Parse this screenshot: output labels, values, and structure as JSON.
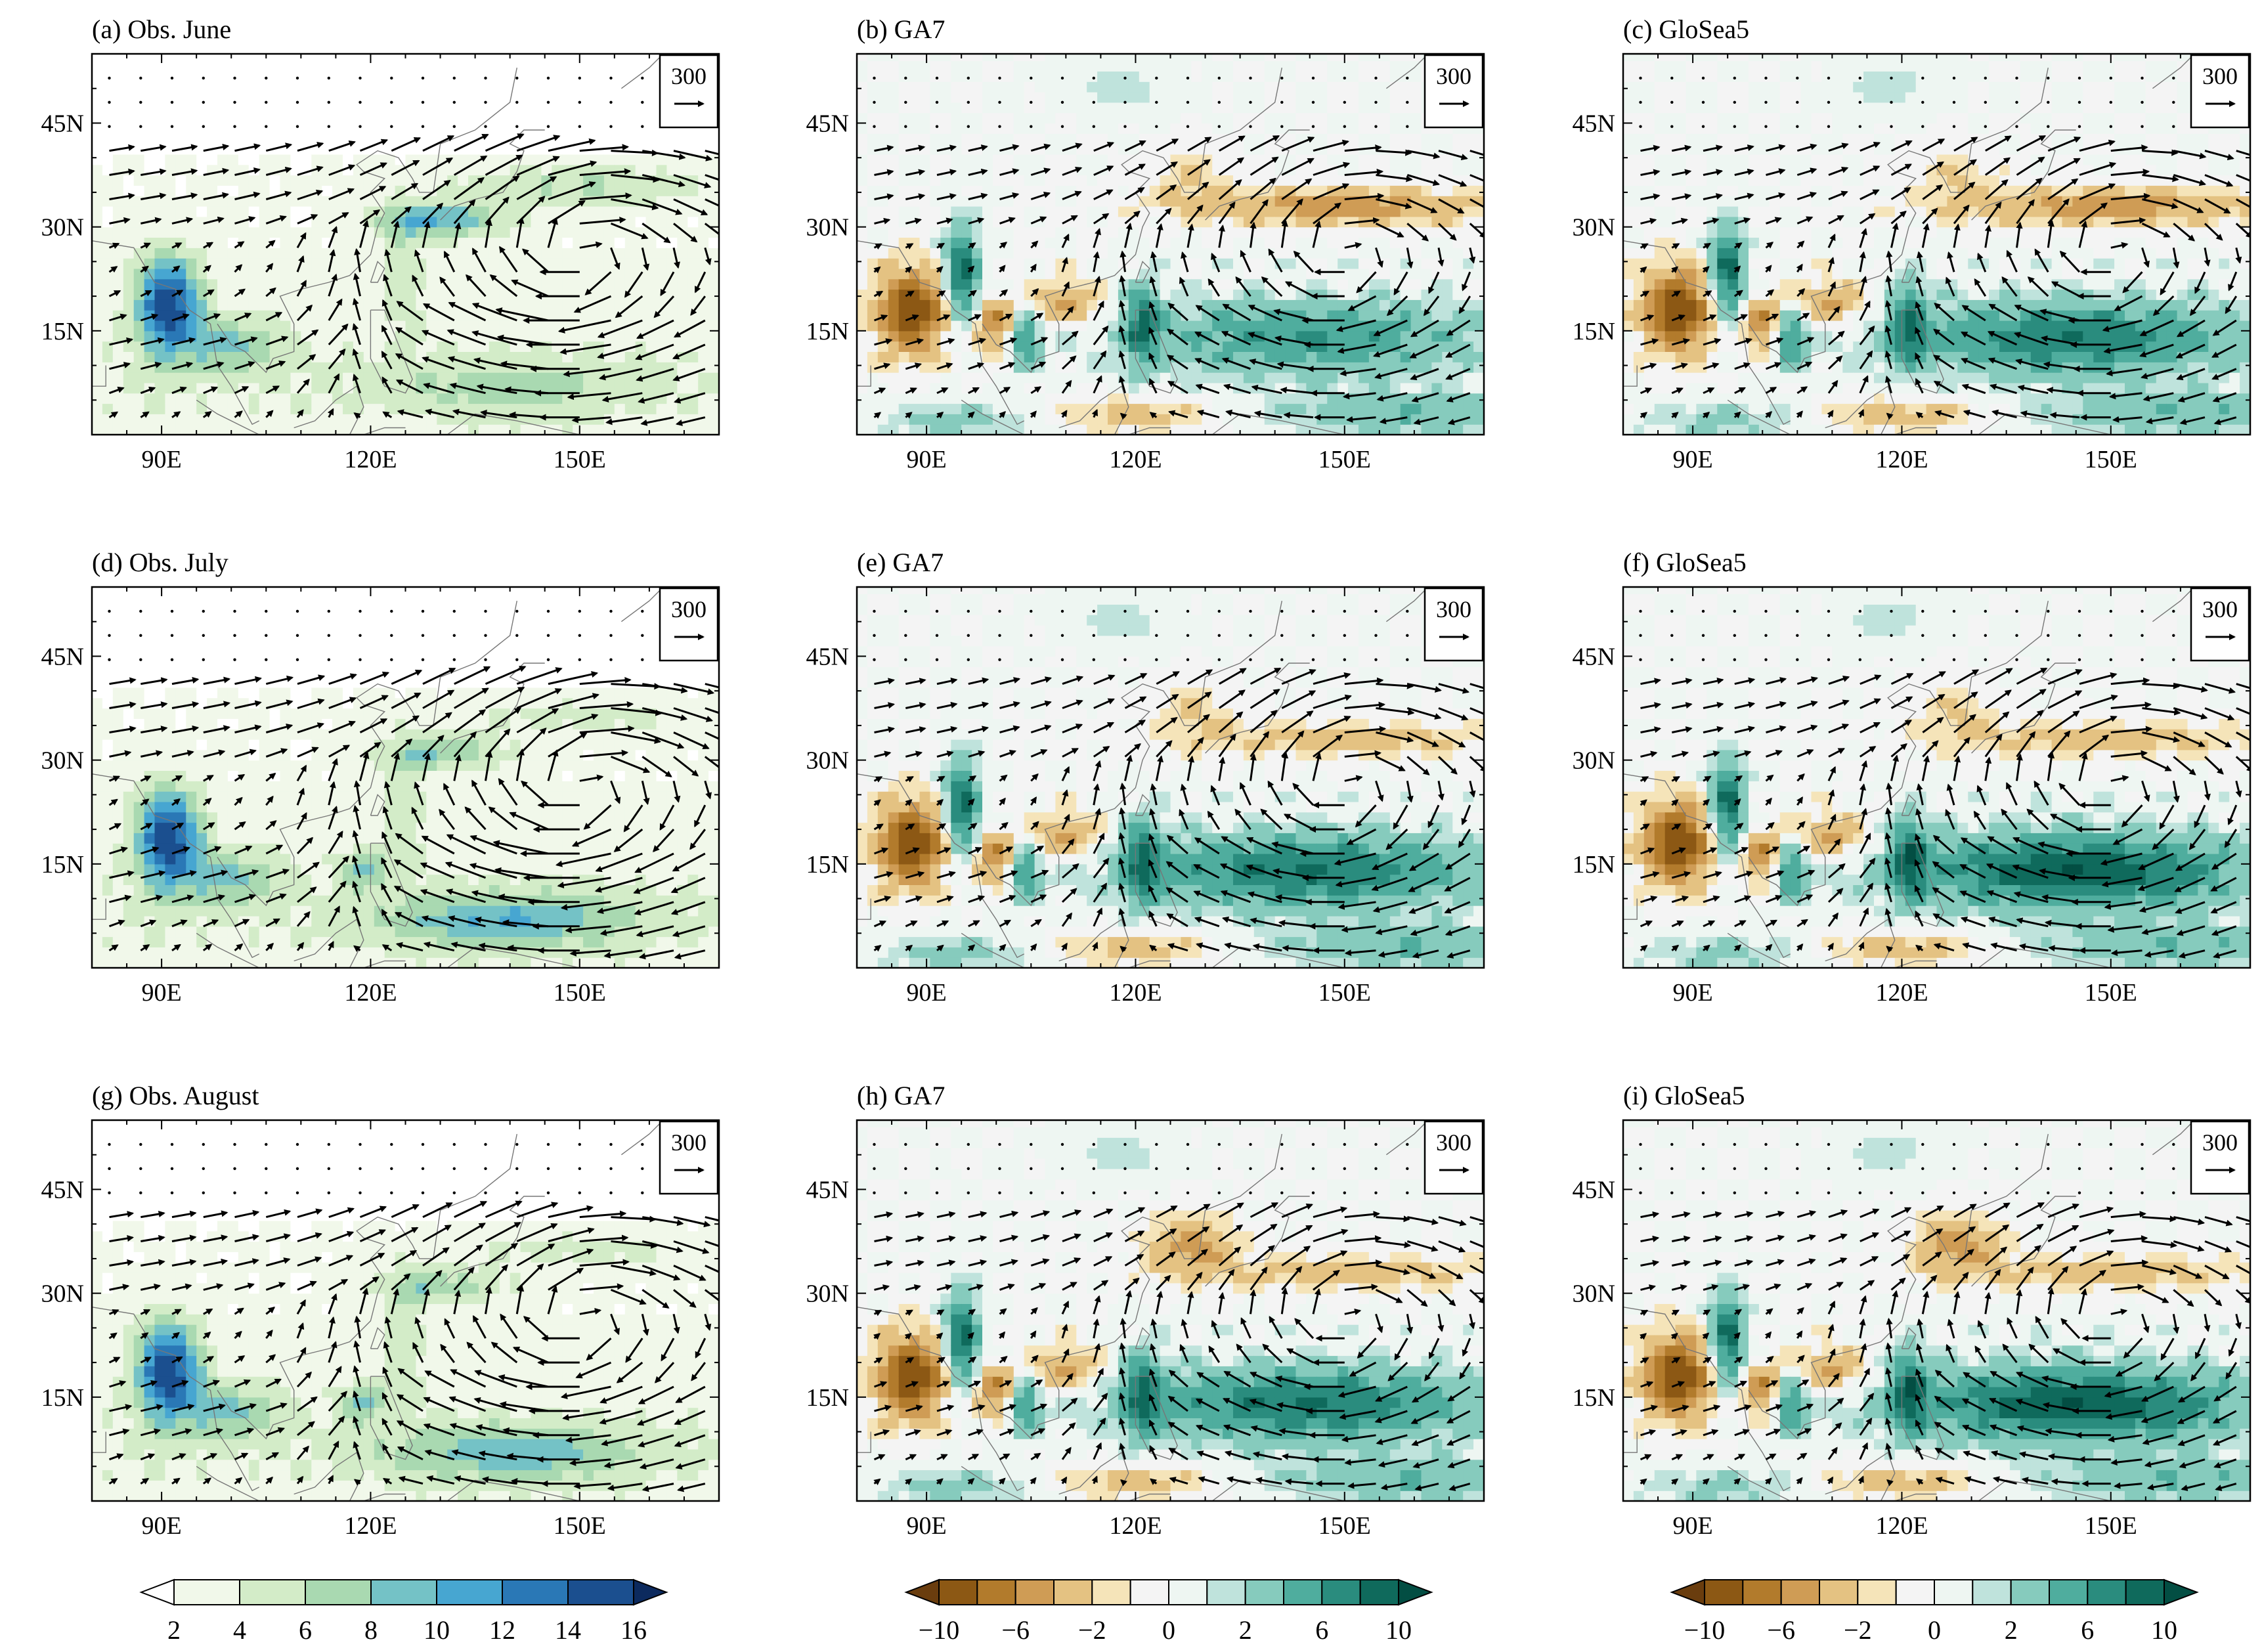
{
  "figure": {
    "panels": [
      {
        "id": "a",
        "title": "(a) Obs. June",
        "kind": "obs",
        "month": 0
      },
      {
        "id": "b",
        "title": "(b) GA7",
        "kind": "diff",
        "month": 0,
        "model": 0
      },
      {
        "id": "c",
        "title": "(c) GloSea5",
        "kind": "diff",
        "month": 0,
        "model": 1
      },
      {
        "id": "d",
        "title": "(d) Obs. July",
        "kind": "obs",
        "month": 1
      },
      {
        "id": "e",
        "title": "(e) GA7",
        "kind": "diff",
        "month": 1,
        "model": 0
      },
      {
        "id": "f",
        "title": "(f) GloSea5",
        "kind": "diff",
        "month": 1,
        "model": 1
      },
      {
        "id": "g",
        "title": "(g) Obs. August",
        "kind": "obs",
        "month": 2
      },
      {
        "id": "h",
        "title": "(h) GA7",
        "kind": "diff",
        "month": 2,
        "model": 0
      },
      {
        "id": "i",
        "title": "(i) GloSea5",
        "kind": "diff",
        "month": 2,
        "model": 1
      }
    ],
    "map": {
      "lon_range": [
        80,
        170
      ],
      "lat_range": [
        0,
        55
      ],
      "x_ticks": [
        {
          "v": 90,
          "label": "90E"
        },
        {
          "v": 120,
          "label": "120E"
        },
        {
          "v": 150,
          "label": "150E"
        }
      ],
      "y_ticks": [
        {
          "v": 15,
          "label": "15N"
        },
        {
          "v": 30,
          "label": "30N"
        },
        {
          "v": 45,
          "label": "45N"
        }
      ],
      "reference_vector": {
        "label": "300",
        "magnitude": 300
      }
    },
    "colorbars": [
      {
        "name": "obs-colorbar",
        "levels": [
          2,
          4,
          6,
          8,
          10,
          12,
          14,
          16
        ],
        "labels": [
          "2",
          "4",
          "6",
          "8",
          "10",
          "12",
          "14",
          "16"
        ],
        "colors": [
          "#ffffff",
          "#f1f8ea",
          "#d3ecc8",
          "#a9d9b1",
          "#74c2c6",
          "#47a6d1",
          "#2a78b6",
          "#1b4f8f",
          "#0c2a5e"
        ]
      },
      {
        "name": "ga7-diff-colorbar",
        "levels": [
          -10,
          -8,
          -6,
          -4,
          -2,
          -1,
          0,
          1,
          2,
          4,
          6,
          8,
          10
        ],
        "labels": [
          "−10",
          "−6",
          "−2",
          "0",
          "2",
          "6",
          "10"
        ],
        "colors": [
          "#6a3d0e",
          "#8c5814",
          "#b27b2c",
          "#cf9c55",
          "#e4c282",
          "#f5e4b9",
          "#f4f4f4",
          "#eef6f2",
          "#bfe3dc",
          "#86cbbd",
          "#4fad9e",
          "#2a8c7e",
          "#0f6a5c",
          "#034e43"
        ]
      },
      {
        "name": "glosea5-diff-colorbar",
        "levels": [
          -10,
          -8,
          -6,
          -4,
          -2,
          -1,
          0,
          1,
          2,
          4,
          6,
          8,
          10
        ],
        "labels": [
          "−10",
          "−6",
          "−2",
          "0",
          "2",
          "6",
          "10"
        ],
        "colors": [
          "#6a3d0e",
          "#8c5814",
          "#b27b2c",
          "#cf9c55",
          "#e4c282",
          "#f5e4b9",
          "#f4f4f4",
          "#eef6f2",
          "#bfe3dc",
          "#86cbbd",
          "#4fad9e",
          "#2a8c7e",
          "#0f6a5c",
          "#034e43"
        ]
      }
    ]
  }
}
